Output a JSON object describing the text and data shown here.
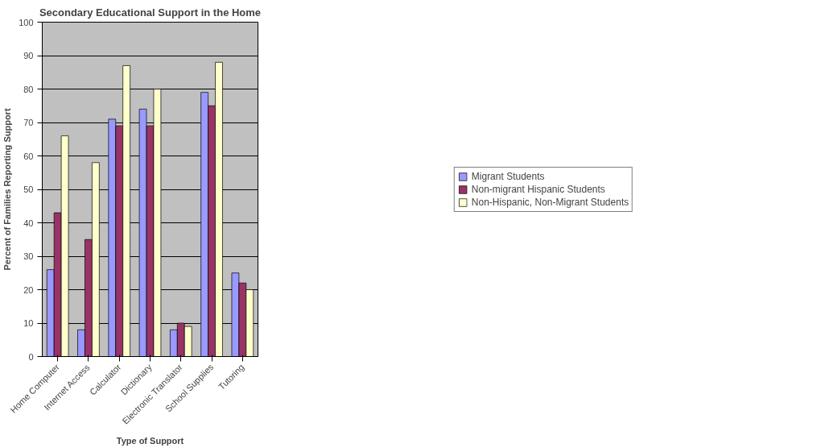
{
  "chart_data": {
    "type": "bar",
    "title": "Secondary Educational Support in the Home",
    "xlabel": "Type of Support",
    "ylabel": "Percent of Families Reporting Support",
    "categories": [
      "Home Computer",
      "Internet Access",
      "Calculator",
      "Dictionary",
      "Electronic Translator",
      "School Supplies",
      "Tutoring"
    ],
    "series": [
      {
        "name": "Migrant Students",
        "color": "#9999ff",
        "values": [
          26,
          8,
          71,
          74,
          8,
          79,
          25
        ]
      },
      {
        "name": "Non-migrant Hispanic Students",
        "color": "#993366",
        "values": [
          43,
          35,
          69,
          69,
          10,
          75,
          22
        ]
      },
      {
        "name": "Non-Hispanic, Non-Migrant Students",
        "color": "#ffffcc",
        "values": [
          66,
          58,
          87,
          80,
          9,
          88,
          20
        ]
      }
    ],
    "ylim": [
      0,
      100
    ],
    "yticks": [
      0,
      10,
      20,
      30,
      40,
      50,
      60,
      70,
      80,
      90,
      100
    ],
    "grid": "y",
    "legend": "right"
  }
}
